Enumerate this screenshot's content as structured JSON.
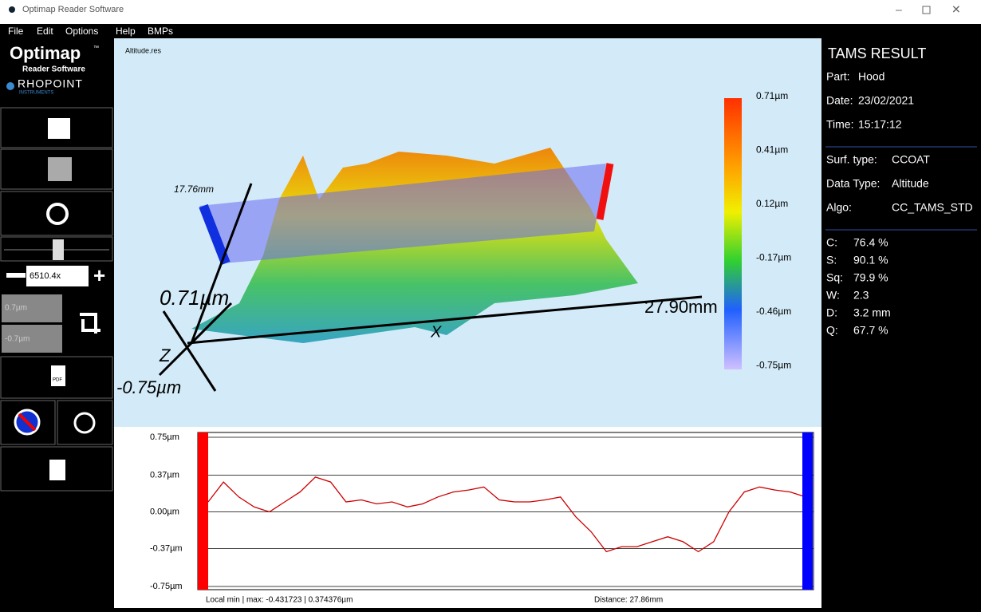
{
  "window": {
    "title": "Optimap Reader Software"
  },
  "menu": [
    "File",
    "Edit",
    "Options",
    "Help",
    "BMPs"
  ],
  "sidebar": {
    "logo": "Optimap",
    "logo_mark": "™",
    "subtitle": "Reader Software",
    "brand": "RHOPOINT",
    "brand_sub": "INSTRUMENTS",
    "zoom": "6510.4x",
    "range_max": "0.7µm",
    "range_min": "-0.7µm",
    "pdf": "PDF"
  },
  "view3d": {
    "file": "Altitude.res",
    "y_extent": "17.76mm",
    "z_max": "0.71µm",
    "z_min": "-0.75µm",
    "x_extent": "27.90mm",
    "z_axis": "Z",
    "x_axis": "X",
    "color_scale": [
      "0.71µm",
      "0.41µm",
      "0.12µm",
      "-0.17µm",
      "-0.46µm",
      "-0.75µm"
    ]
  },
  "profile": {
    "ylim": [
      -0.75,
      0.75
    ],
    "yticks": [
      {
        "value": 0.75,
        "label": "0.75µm"
      },
      {
        "value": 0.37,
        "label": "0.37µm"
      },
      {
        "value": 0,
        "label": "0.00µm"
      },
      {
        "value": -0.37,
        "label": "-0.37µm"
      },
      {
        "value": -0.75,
        "label": "-0.75µm"
      }
    ],
    "color": "#cc0000",
    "values": [
      0.1,
      0.3,
      0.15,
      0.05,
      0.0,
      0.1,
      0.2,
      0.35,
      0.3,
      0.1,
      0.12,
      0.08,
      0.1,
      0.05,
      0.08,
      0.15,
      0.2,
      0.22,
      0.25,
      0.12,
      0.1,
      0.1,
      0.12,
      0.15,
      -0.05,
      -0.2,
      -0.4,
      -0.35,
      -0.35,
      -0.3,
      -0.25,
      -0.3,
      -0.4,
      -0.3,
      0.0,
      0.2,
      0.25,
      0.22,
      0.2,
      0.15
    ],
    "min_max": "Local min | max:  -0.431723 | 0.374376µm",
    "distance": "Distance: 27.86mm"
  },
  "result": {
    "title": "TAMS RESULT",
    "info": [
      [
        "Part:",
        "Hood"
      ],
      [
        "Date:",
        "23/02/2021"
      ],
      [
        "Time:",
        "15:17:12"
      ]
    ],
    "surface": [
      [
        "Surf. type:",
        "CCOAT"
      ],
      [
        "Data Type:",
        "Altitude"
      ],
      [
        "Algo:",
        "CC_TAMS_STD"
      ]
    ],
    "metrics": [
      [
        "C:",
        "76.4 %"
      ],
      [
        "S:",
        "90.1 %"
      ],
      [
        "Sq:",
        "79.9 %"
      ],
      [
        "W:",
        "2.3"
      ],
      [
        "D:",
        "3.2 mm"
      ],
      [
        "Q:",
        "67.7 %"
      ]
    ]
  }
}
